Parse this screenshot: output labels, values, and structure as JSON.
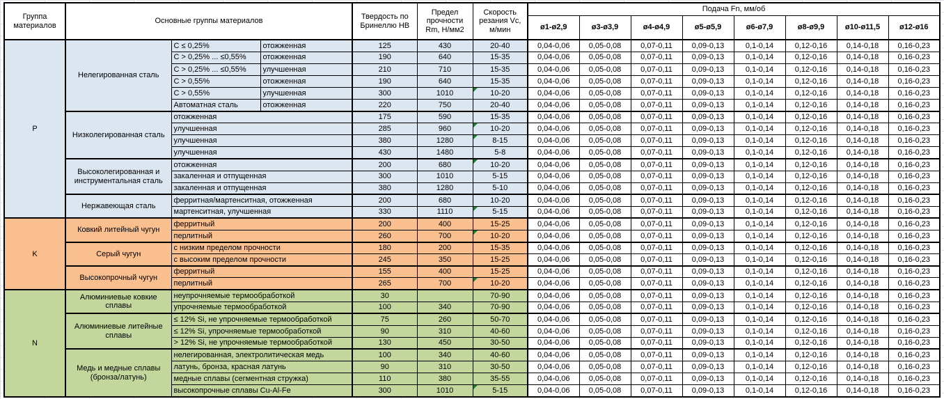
{
  "header": {
    "group_col": "Группа материалов",
    "main_col": "Основные группы материалов",
    "hardness_col": "Твердость по Бринеллю HB",
    "strength_col": "Предел прочности Rm, Н/мм2",
    "speed_col": "Скорость резания Vc, м/мин",
    "feed_title": "Подача Fn, мм/об",
    "feed_cols": [
      "ø1-ø2,9",
      "ø3-ø3,9",
      "ø4-ø4,9",
      "ø5-ø5,9",
      "ø6-ø7,9",
      "ø8-ø9,9",
      "ø10-ø11,5",
      "ø12-ø16"
    ]
  },
  "feed_values": [
    "0,04-0,06",
    "0,05-0,08",
    "0,07-0,11",
    "0,09-0,13",
    "0,1-0,14",
    "0,12-0,16",
    "0,14-0,18",
    "0,16-0,23"
  ],
  "colors": {
    "section_p": "#dce6f1",
    "section_k": "#fabf8f",
    "section_n": "#c3d69b",
    "header_bg": "#ffffff",
    "border": "#000000",
    "flag_triangle": "#1e7b34",
    "gridline": "#dde2ea"
  },
  "sections": [
    {
      "code": "P",
      "color": "#dce6f1",
      "groups": [
        {
          "name": "Нелегированная сталь",
          "rows": [
            {
              "cols": [
                "C ≤ 0,25%",
                "отожженная"
              ],
              "hb": "125",
              "rm": "430",
              "vc": "20-40",
              "flag": false
            },
            {
              "cols": [
                "C > 0,25% ... ≤0,55%",
                "отожженная"
              ],
              "hb": "190",
              "rm": "640",
              "vc": "15-35",
              "flag": false
            },
            {
              "cols": [
                "C > 0,25% ... ≤0,55%",
                "улучшенная"
              ],
              "hb": "210",
              "rm": "710",
              "vc": "15-35",
              "flag": false
            },
            {
              "cols": [
                "C > 0,55%",
                "отожженная"
              ],
              "hb": "190",
              "rm": "640",
              "vc": "15-35",
              "flag": false
            },
            {
              "cols": [
                "C > 0,55%",
                "улучшенная"
              ],
              "hb": "300",
              "rm": "1010",
              "vc": "10-20",
              "flag": true
            },
            {
              "cols": [
                "Автоматная сталь",
                "отожженная"
              ],
              "hb": "220",
              "rm": "750",
              "vc": "20-40",
              "flag": false
            }
          ]
        },
        {
          "name": "Низколегированная сталь",
          "rows": [
            {
              "cols": [
                "отожженная"
              ],
              "hb": "175",
              "rm": "590",
              "vc": "15-35",
              "flag": false
            },
            {
              "cols": [
                "улучшенная"
              ],
              "hb": "285",
              "rm": "960",
              "vc": "10-20",
              "flag": true
            },
            {
              "cols": [
                "улучшенная"
              ],
              "hb": "380",
              "rm": "1280",
              "vc": "8-15",
              "flag": true
            },
            {
              "cols": [
                "улучшенная"
              ],
              "hb": "430",
              "rm": "1480",
              "vc": "5-8",
              "flag": false
            }
          ]
        },
        {
          "name": "Высоколегированная и инструментальная сталь",
          "rows": [
            {
              "cols": [
                "отожженная"
              ],
              "hb": "200",
              "rm": "680",
              "vc": "10-20",
              "flag": true
            },
            {
              "cols": [
                "закаленная и отпущенная"
              ],
              "hb": "300",
              "rm": "1010",
              "vc": "5-15",
              "flag": false
            },
            {
              "cols": [
                "закаленная и отпущенная"
              ],
              "hb": "380",
              "rm": "1280",
              "vc": "5-10",
              "flag": false
            }
          ]
        },
        {
          "name": "Нержавеющая сталь",
          "rows": [
            {
              "cols": [
                "ферритная/мартенситная, отожженная"
              ],
              "hb": "200",
              "rm": "680",
              "vc": "10-20",
              "flag": false
            },
            {
              "cols": [
                "мартенситная, улучшенная"
              ],
              "hb": "330",
              "rm": "1110",
              "vc": "5-15",
              "flag": true
            }
          ]
        }
      ]
    },
    {
      "code": "K",
      "color": "#fabf8f",
      "groups": [
        {
          "name": "Ковкий литейный чугун",
          "rows": [
            {
              "cols": [
                "ферритный"
              ],
              "hb": "200",
              "rm": "400",
              "vc": "15-25",
              "flag": false
            },
            {
              "cols": [
                "перлитный"
              ],
              "hb": "260",
              "rm": "700",
              "vc": "10-20",
              "flag": true
            }
          ]
        },
        {
          "name": "Серый чугун",
          "rows": [
            {
              "cols": [
                "с низким пределом прочности"
              ],
              "hb": "180",
              "rm": "200",
              "vc": "15-35",
              "flag": false
            },
            {
              "cols": [
                "с высоким пределом прочности"
              ],
              "hb": "245",
              "rm": "350",
              "vc": "15-25",
              "flag": false
            }
          ]
        },
        {
          "name": "Высокопрочный чугун",
          "rows": [
            {
              "cols": [
                "ферритный"
              ],
              "hb": "155",
              "rm": "400",
              "vc": "15-25",
              "flag": false
            },
            {
              "cols": [
                "перлитный"
              ],
              "hb": "265",
              "rm": "700",
              "vc": "10-20",
              "flag": true
            }
          ]
        }
      ]
    },
    {
      "code": "N",
      "color": "#c3d69b",
      "groups": [
        {
          "name": "Алюминиевые ковкие сплавы",
          "rows": [
            {
              "cols": [
                "неупрочняемые термообработкой"
              ],
              "hb": "30",
              "rm": "",
              "vc": "70-90",
              "flag": false
            },
            {
              "cols": [
                "упрочняемые термообработкой"
              ],
              "hb": "100",
              "rm": "340",
              "vc": "70-90",
              "flag": false
            }
          ]
        },
        {
          "name": "Алюминиевые литейные сплавы",
          "rows": [
            {
              "cols": [
                "≤ 12% Si, не упрочняемые термообработкой"
              ],
              "hb": "75",
              "rm": "260",
              "vc": "50-70",
              "flag": false
            },
            {
              "cols": [
                "≤ 12% Si, упрочняемые термообработкой"
              ],
              "hb": "90",
              "rm": "310",
              "vc": "40-60",
              "flag": false
            },
            {
              "cols": [
                "> 12% Si, не упрочняемые термообработкой"
              ],
              "hb": "130",
              "rm": "450",
              "vc": "30-50",
              "flag": false
            }
          ]
        },
        {
          "name": "Медь и медные сплавы (бронза/латунь)",
          "rows": [
            {
              "cols": [
                "нелегированная, электролитическая медь"
              ],
              "hb": "100",
              "rm": "340",
              "vc": "40-60",
              "flag": false
            },
            {
              "cols": [
                "латунь, бронза, красная латунь"
              ],
              "hb": "90",
              "rm": "310",
              "vc": "30-50",
              "flag": false
            },
            {
              "cols": [
                "медные сплавы (сегментная стружка)"
              ],
              "hb": "110",
              "rm": "380",
              "vc": "35-55",
              "flag": false
            },
            {
              "cols": [
                "высокопрочные сплавы Cu-Al-Fe"
              ],
              "hb": "300",
              "rm": "1010",
              "vc": "5-15",
              "flag": true
            }
          ]
        }
      ]
    }
  ]
}
